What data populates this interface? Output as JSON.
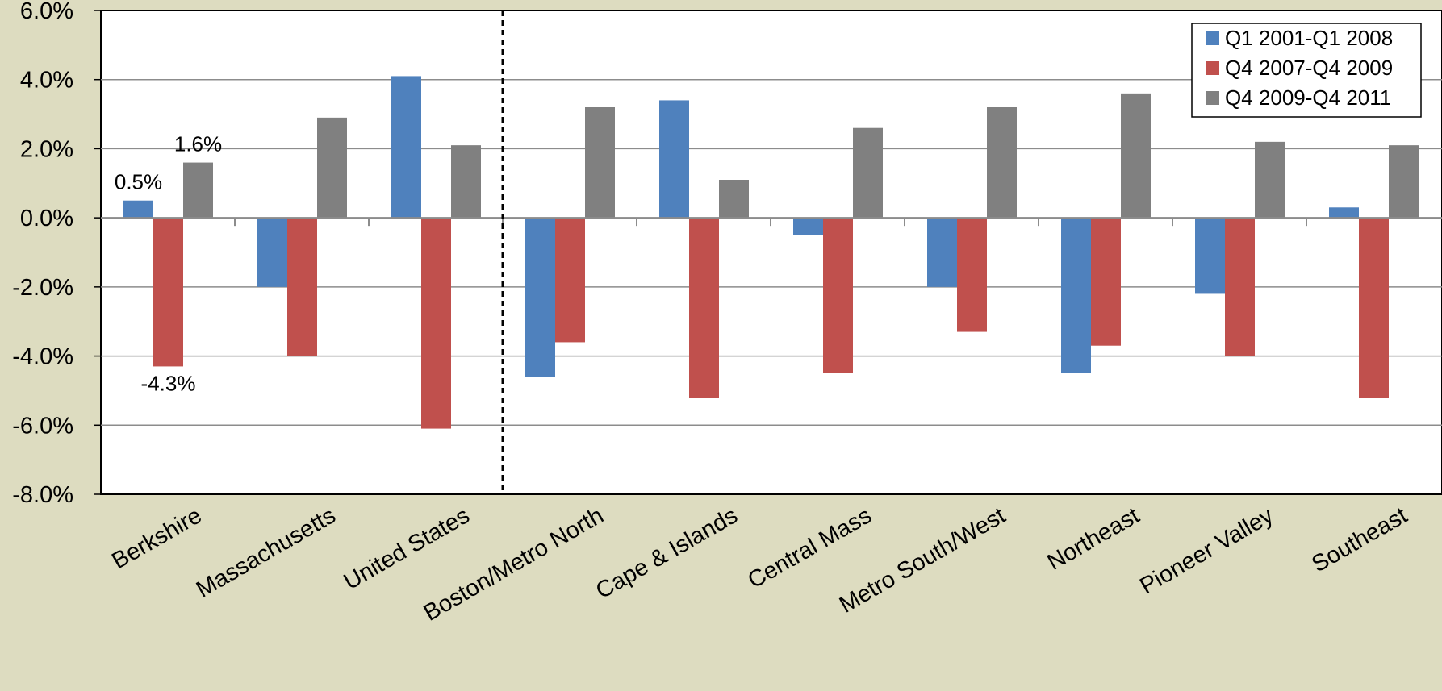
{
  "chart_data": {
    "type": "bar",
    "categories": [
      "Berkshire",
      "Massachusetts",
      "United States",
      "Boston/Metro North",
      "Cape & Islands",
      "Central Mass",
      "Metro South/West",
      "Northeast",
      "Pioneer Valley",
      "Southeast"
    ],
    "series": [
      {
        "name": "Q1 2001-Q1 2008",
        "color": "#4f81bd",
        "values": [
          0.5,
          -2.0,
          4.1,
          -4.6,
          3.4,
          -0.5,
          -2.0,
          -4.5,
          -2.2,
          0.3
        ]
      },
      {
        "name": "Q4 2007-Q4 2009",
        "color": "#c0504d",
        "values": [
          -4.3,
          -4.0,
          -6.1,
          -3.6,
          -5.2,
          -4.5,
          -3.3,
          -3.7,
          -4.0,
          -5.2
        ]
      },
      {
        "name": "Q4 2009-Q4 2011",
        "color": "#808080",
        "values": [
          1.6,
          2.9,
          2.1,
          3.2,
          1.1,
          2.6,
          3.2,
          3.6,
          2.2,
          2.1
        ]
      }
    ],
    "ylim": [
      -8.0,
      6.0
    ],
    "ytick_step": 2.0,
    "ytick_labels": [
      "6.0%",
      "4.0%",
      "2.0%",
      "0.0%",
      "-2.0%",
      "-4.0%",
      "-6.0%",
      "-8.0%"
    ],
    "data_labels": [
      {
        "category": "Berkshire",
        "series": "Q1 2001-Q1 2008",
        "text": "0.5%"
      },
      {
        "category": "Berkshire",
        "series": "Q4 2007-Q4 2009",
        "text": "-4.3%"
      },
      {
        "category": "Berkshire",
        "series": "Q4 2009-Q4 2011",
        "text": "1.6%"
      }
    ],
    "divider_after_category": "United States",
    "grid": true,
    "legend_position": "top-right",
    "plot_background": "#ffffff",
    "page_background": "#dddcc0"
  }
}
